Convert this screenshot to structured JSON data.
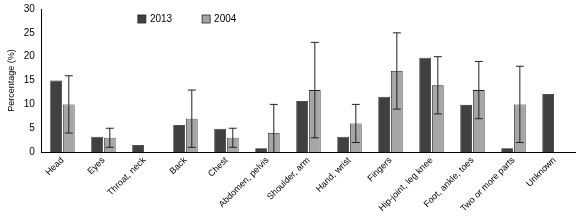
{
  "chart_data": {
    "type": "bar",
    "y_label": "Percentage (%)",
    "categories": [
      "Head",
      "Eyes",
      "Throat, neck",
      "Back",
      "Chest",
      "Abdomen, pelvis",
      "Shoulder, arm",
      "Hand, wrist",
      "Fingers",
      "Hip-joint, leg knee",
      "Foot, ankle, toes",
      "Two or more parts",
      "Unknown"
    ],
    "series": [
      {
        "name": "2013",
        "color": "#404040",
        "values": [
          15,
          3.2,
          1.5,
          5.7,
          4.9,
          0.8,
          10.7,
          3.2,
          11.6,
          19.8,
          9.9,
          0.8,
          12.2
        ]
      },
      {
        "name": "2004",
        "color": "#a6a6a6",
        "values": [
          10,
          3,
          null,
          7,
          3,
          4,
          13,
          6,
          17,
          14,
          13,
          10,
          null
        ],
        "error": [
          6,
          2,
          null,
          6,
          2,
          6,
          10,
          4,
          8,
          6,
          6,
          8,
          null
        ]
      }
    ],
    "ylim": [
      0,
      30
    ],
    "yticks": [
      0,
      5,
      10,
      15,
      20,
      25,
      30
    ],
    "grid": false,
    "legend": "top"
  }
}
